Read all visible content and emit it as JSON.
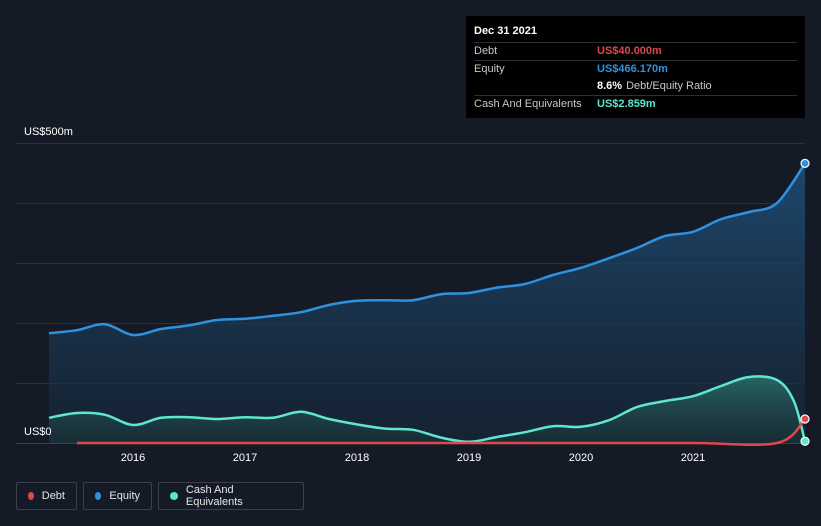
{
  "tooltip": {
    "date": "Dec 31 2021",
    "debt_label": "Debt",
    "debt_value": "US$40.000m",
    "equity_label": "Equity",
    "equity_value": "US$466.170m",
    "ratio_value": "8.6%",
    "ratio_label": "Debt/Equity Ratio",
    "cash_label": "Cash And Equivalents",
    "cash_value": "US$2.859m"
  },
  "legend": [
    {
      "label": "Debt",
      "color": "#e0474c"
    },
    {
      "label": "Equity",
      "color": "#2e92e0"
    },
    {
      "label": "Cash And Equivalents",
      "color": "#5ee6cf"
    }
  ],
  "chart_data": {
    "type": "area",
    "y_top_label": "US$500m",
    "y_bottom_label": "US$0",
    "x_ticks": [
      2016,
      2017,
      2018,
      2019,
      2020,
      2021
    ],
    "ylim": [
      0,
      500
    ],
    "grid": true,
    "series": [
      {
        "name": "Equity",
        "color": "#2e92e0",
        "points": [
          [
            2015.25,
            183
          ],
          [
            2015.5,
            188
          ],
          [
            2015.75,
            198
          ],
          [
            2016.0,
            180
          ],
          [
            2016.25,
            190
          ],
          [
            2016.5,
            196
          ],
          [
            2016.75,
            205
          ],
          [
            2017.0,
            207
          ],
          [
            2017.25,
            212
          ],
          [
            2017.5,
            218
          ],
          [
            2017.75,
            230
          ],
          [
            2018.0,
            237
          ],
          [
            2018.25,
            238
          ],
          [
            2018.5,
            238
          ],
          [
            2018.75,
            248
          ],
          [
            2019.0,
            250
          ],
          [
            2019.25,
            259
          ],
          [
            2019.5,
            265
          ],
          [
            2019.75,
            280
          ],
          [
            2020.0,
            292
          ],
          [
            2020.25,
            308
          ],
          [
            2020.5,
            325
          ],
          [
            2020.75,
            345
          ],
          [
            2021.0,
            352
          ],
          [
            2021.25,
            373
          ],
          [
            2021.5,
            385
          ],
          [
            2021.75,
            400
          ],
          [
            2022.0,
            466
          ]
        ]
      },
      {
        "name": "Cash And Equivalents",
        "color": "#5ee6cf",
        "points": [
          [
            2015.25,
            42
          ],
          [
            2015.5,
            50
          ],
          [
            2015.75,
            47
          ],
          [
            2016.0,
            30
          ],
          [
            2016.25,
            42
          ],
          [
            2016.5,
            43
          ],
          [
            2016.75,
            40
          ],
          [
            2017.0,
            43
          ],
          [
            2017.25,
            42
          ],
          [
            2017.5,
            52
          ],
          [
            2017.75,
            40
          ],
          [
            2018.0,
            31
          ],
          [
            2018.25,
            24
          ],
          [
            2018.5,
            22
          ],
          [
            2018.75,
            9
          ],
          [
            2019.0,
            2
          ],
          [
            2019.25,
            10
          ],
          [
            2019.5,
            18
          ],
          [
            2019.75,
            28
          ],
          [
            2020.0,
            27
          ],
          [
            2020.25,
            38
          ],
          [
            2020.5,
            60
          ],
          [
            2020.75,
            70
          ],
          [
            2021.0,
            78
          ],
          [
            2021.25,
            95
          ],
          [
            2021.5,
            110
          ],
          [
            2021.75,
            105
          ],
          [
            2021.9,
            70
          ],
          [
            2022.0,
            2.859
          ]
        ]
      },
      {
        "name": "Debt",
        "color": "#e0474c",
        "points": [
          [
            2015.5,
            0
          ],
          [
            2016.0,
            0
          ],
          [
            2017.0,
            0
          ],
          [
            2018.0,
            0
          ],
          [
            2019.0,
            0
          ],
          [
            2020.0,
            0
          ],
          [
            2021.0,
            0
          ],
          [
            2021.75,
            0
          ],
          [
            2022.0,
            40
          ]
        ]
      }
    ]
  }
}
